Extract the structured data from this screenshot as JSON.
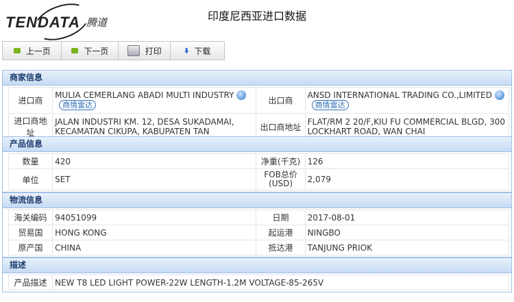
{
  "logo": {
    "en": "TENDATA",
    "cn": "腾道"
  },
  "title": "印度尼西亚进口数据",
  "toolbar": {
    "prev": "上一页",
    "next": "下一页",
    "print": "打印",
    "download": "下载"
  },
  "merchant": {
    "heading": "商家信息",
    "importer_label": "进口商",
    "importer": "MULIA CEMERLANG ABADI MULTI INDUSTRY",
    "exporter_label": "出口商",
    "exporter": "ANSD INTERNATIONAL TRADING CO.,LIMITED",
    "radar": "商情雷达",
    "importer_addr_label": "进口商地址",
    "importer_addr": "JALAN INDUSTRI KM. 12, DESA SUKADAMAI, KECAMATAN CIKUPA, KABUPATEN TAN",
    "exporter_addr_label": "出口商地址",
    "exporter_addr": "FLAT/RM 2 20/F,KIU FU COMMERCIAL BLGD, 300 LOCKHART ROAD, WAN CHAI"
  },
  "product": {
    "heading": "产品信息",
    "qty_label": "数量",
    "qty": "420",
    "weight_label": "净重(千克)",
    "weight": "126",
    "unit_label": "单位",
    "unit": "SET",
    "fob_label": "FOB总价(USD)",
    "fob": "2,079"
  },
  "logistics": {
    "heading": "物流信息",
    "hs_label": "海关编码",
    "hs": "94051099",
    "date_label": "日期",
    "date": "2017-08-01",
    "trade_label": "贸易国",
    "trade": "HONG KONG",
    "origin_port_label": "起运港",
    "origin_port": "NINGBO",
    "country_label": "原产国",
    "country": "CHINA",
    "dest_port_label": "抵达港",
    "dest_port": "TANJUNG PRIOK"
  },
  "description": {
    "heading": "描述",
    "label": "产品描述",
    "value": "NEW T8 LED LIGHT POWER-22W LENGTH-1.2M VOLTAGE-85-265V"
  }
}
